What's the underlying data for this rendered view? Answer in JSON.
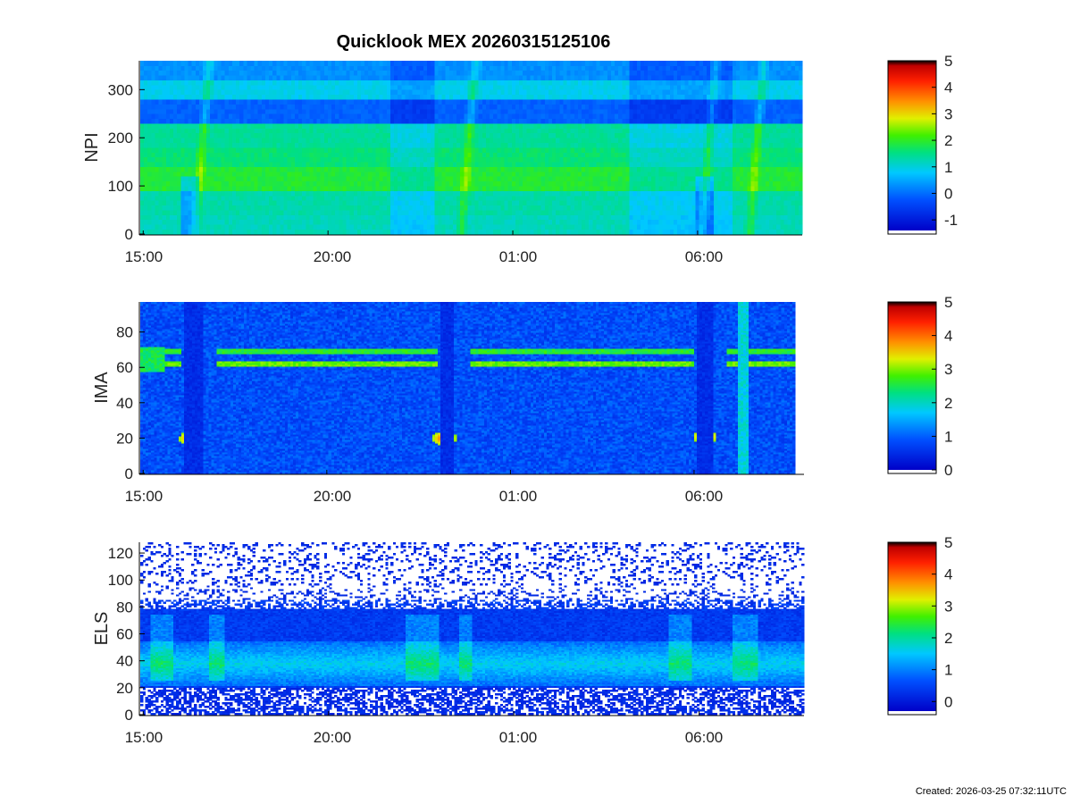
{
  "title": "Quicklook MEX 20260315125106",
  "created": "Created: 2026-03-25 07:32:11UTC",
  "chart_data": [
    {
      "type": "heatmap",
      "id": "npi",
      "ylabel": "NPI",
      "x_ticks": [
        "15:00",
        "20:00",
        "01:00",
        "06:00"
      ],
      "x_range_hours": [
        14.92,
        32.83
      ],
      "x_tick_hours": [
        15,
        20,
        25,
        30
      ],
      "ylim": [
        0,
        360
      ],
      "y_ticks": [
        0,
        100,
        200,
        300
      ],
      "colorbar": {
        "min": -1.4,
        "max": 5,
        "ticks": [
          -1,
          0,
          1,
          2,
          3,
          4,
          5
        ]
      },
      "features": {
        "bands": [
          {
            "y": [
              0,
              45
            ],
            "v": 1.2
          },
          {
            "y": [
              45,
              90
            ],
            "v": 1.3
          },
          {
            "y": [
              90,
              140
            ],
            "v": 1.9
          },
          {
            "y": [
              140,
              180
            ],
            "v": 1.6
          },
          {
            "y": [
              180,
              230
            ],
            "v": 1.4
          },
          {
            "y": [
              230,
              280
            ],
            "v": -0.1
          },
          {
            "y": [
              280,
              325
            ],
            "v": 0.9
          },
          {
            "y": [
              325,
              360
            ],
            "v": 0.3
          }
        ],
        "crossings_hours": [
          16.6,
          23.8,
          30.3,
          31.6
        ],
        "dim_intervals_hours": [
          [
            21.7,
            22.9
          ],
          [
            28.2,
            30.9
          ]
        ]
      }
    },
    {
      "type": "heatmap",
      "id": "ima",
      "ylabel": "IMA",
      "x_ticks": [
        "15:00",
        "20:00",
        "01:00",
        "06:00"
      ],
      "x_range_hours": [
        14.92,
        32.75
      ],
      "x_tick_hours": [
        15,
        20,
        25,
        30
      ],
      "ylim": [
        0,
        97
      ],
      "y_ticks": [
        0,
        20,
        40,
        60,
        80
      ],
      "colorbar": {
        "min": 0,
        "max": 5,
        "ticks": [
          0,
          1,
          2,
          3,
          4,
          5
        ]
      },
      "features": {
        "upper_line_y": 69,
        "lower_line_y": 62,
        "hot_spots": [
          {
            "x_hours": 16.3,
            "y": 20
          },
          {
            "x_hours": 23.2,
            "y": 20
          },
          {
            "x_hours": 30.3,
            "y": 21
          }
        ],
        "dark_strips_hours": [
          [
            16.1,
            16.6
          ],
          [
            23.1,
            23.5
          ],
          [
            30.1,
            30.5
          ]
        ],
        "bright_strip_hours": [
          31.2,
          31.5
        ]
      }
    },
    {
      "type": "heatmap",
      "id": "els",
      "ylabel": "ELS",
      "x_ticks": [
        "15:00",
        "20:00",
        "01:00",
        "06:00"
      ],
      "x_range_hours": [
        14.92,
        32.83
      ],
      "x_tick_hours": [
        15,
        20,
        25,
        30
      ],
      "ylim": [
        0,
        128
      ],
      "y_ticks": [
        0,
        20,
        40,
        60,
        80,
        100,
        120
      ],
      "colorbar": {
        "min": -0.3,
        "max": 5,
        "ticks": [
          0,
          1,
          2,
          3,
          4,
          5
        ]
      },
      "features": {
        "core_band_y": [
          22,
          55
        ],
        "peak_y": 38,
        "bright_intervals_hours": [
          [
            15.2,
            15.8
          ],
          [
            16.8,
            17.2
          ],
          [
            22.1,
            23.0
          ],
          [
            23.5,
            23.9
          ],
          [
            29.2,
            29.8
          ],
          [
            30.9,
            31.6
          ]
        ]
      }
    }
  ]
}
